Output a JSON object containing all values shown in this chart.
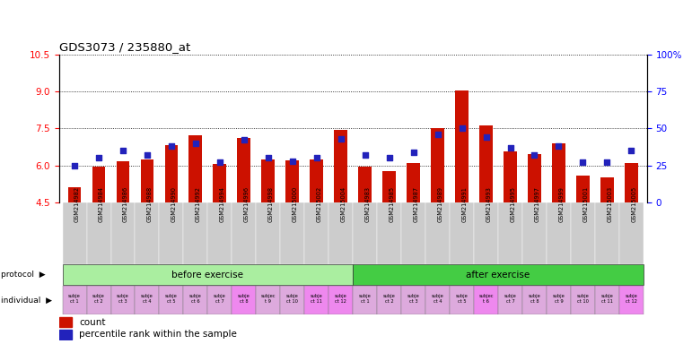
{
  "title": "GDS3073 / 235880_at",
  "samples": [
    "GSM214982",
    "GSM214984",
    "GSM214986",
    "GSM214988",
    "GSM214990",
    "GSM214992",
    "GSM214994",
    "GSM214996",
    "GSM214998",
    "GSM215000",
    "GSM215002",
    "GSM215004",
    "GSM214983",
    "GSM214985",
    "GSM214987",
    "GSM214989",
    "GSM214991",
    "GSM214993",
    "GSM214995",
    "GSM214997",
    "GSM214999",
    "GSM215001",
    "GSM215003",
    "GSM215005"
  ],
  "count_values": [
    5.1,
    5.95,
    6.15,
    6.25,
    6.8,
    7.2,
    6.05,
    7.1,
    6.25,
    6.2,
    6.25,
    7.45,
    5.95,
    5.75,
    6.1,
    7.5,
    9.05,
    7.6,
    6.55,
    6.45,
    6.9,
    5.6,
    5.5,
    6.1
  ],
  "percentile_values": [
    25,
    30,
    35,
    32,
    38,
    40,
    27,
    42,
    30,
    28,
    30,
    43,
    32,
    30,
    34,
    46,
    50,
    44,
    37,
    32,
    38,
    27,
    27,
    35
  ],
  "n_before": 12,
  "n_after": 12,
  "ylim_left": [
    4.5,
    10.5
  ],
  "ylim_right": [
    0,
    100
  ],
  "yticks_left": [
    4.5,
    6.0,
    7.5,
    9.0,
    10.5
  ],
  "yticks_right": [
    0,
    25,
    50,
    75,
    100
  ],
  "bar_color": "#cc1100",
  "marker_color": "#2222bb",
  "before_bg": "#aaeea0",
  "after_bg": "#44cc44",
  "xtick_bg": "#cccccc",
  "indiv_colors_before": [
    "#ddaadd",
    "#ddaadd",
    "#ddaadd",
    "#ddaadd",
    "#ddaadd",
    "#ddaadd",
    "#ddaadd",
    "#ee88ee",
    "#ddaadd",
    "#ddaadd",
    "#ee88ee",
    "#ee88ee"
  ],
  "indiv_colors_after": [
    "#ddaadd",
    "#ddaadd",
    "#ddaadd",
    "#ddaadd",
    "#ddaadd",
    "#ee88ee",
    "#ddaadd",
    "#ddaadd",
    "#ddaadd",
    "#ddaadd",
    "#ddaadd",
    "#ee88ee"
  ],
  "indiv_labels_before": [
    "subje\nct 1",
    "subje\nct 2",
    "subje\nct 3",
    "subje\nct 4",
    "subje\nct 5",
    "subje\nct 6",
    "subje\nct 7",
    "subje\nct 8",
    "subjec\nt 9",
    "subje\nct 10",
    "subje\nct 11",
    "subje\nct 12"
  ],
  "indiv_labels_after": [
    "subje\nct 1",
    "subje\nct 2",
    "subje\nct 3",
    "subje\nct 4",
    "subje\nct 5",
    "subjec\nt 6",
    "subje\nct 7",
    "subje\nct 8",
    "subje\nct 9",
    "subje\nct 10",
    "subje\nct 11",
    "subje\nct 12"
  ]
}
